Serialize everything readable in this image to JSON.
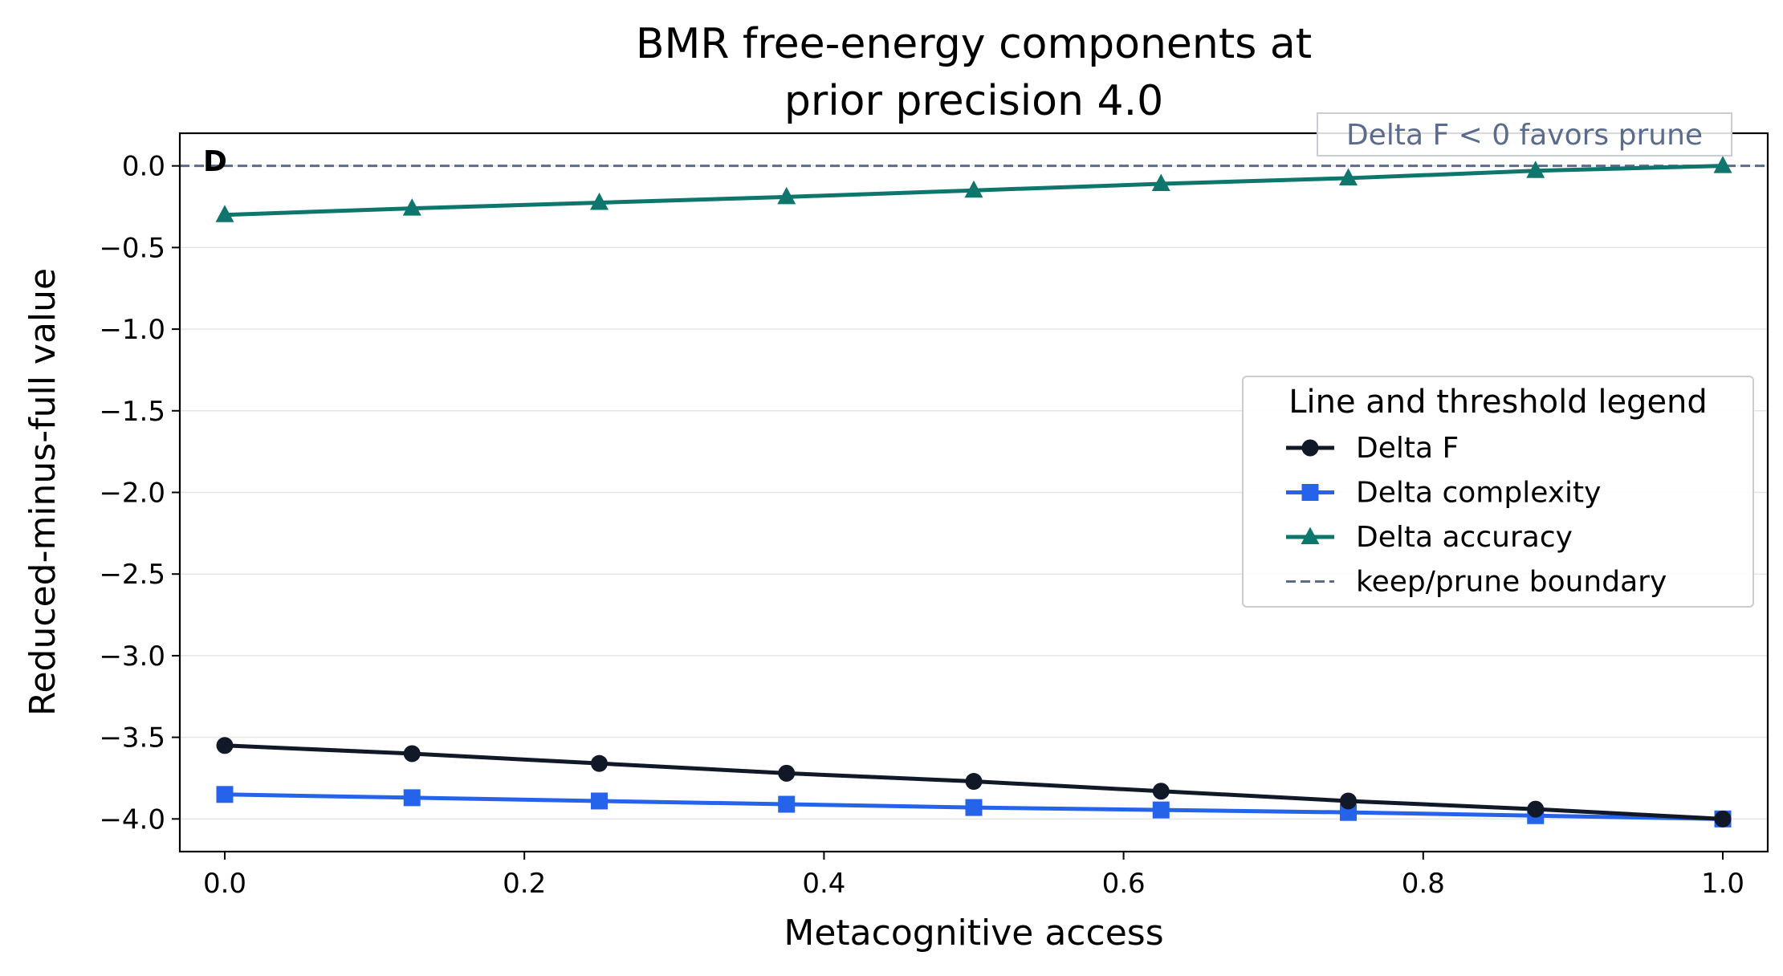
{
  "chart_data": {
    "type": "line",
    "title_lines": [
      "BMR free-energy components at",
      "prior precision 4.0"
    ],
    "xlabel": "Metacognitive access",
    "ylabel": "Reduced-minus-full value",
    "panel_label": "D",
    "xlim": [
      -0.03,
      1.03
    ],
    "ylim": [
      -4.2,
      0.2
    ],
    "x_ticks": [
      0.0,
      0.2,
      0.4,
      0.6,
      0.8,
      1.0
    ],
    "x_tick_labels": [
      "0.0",
      "0.2",
      "0.4",
      "0.6",
      "0.8",
      "1.0"
    ],
    "y_ticks": [
      0.0,
      -0.5,
      -1.0,
      -1.5,
      -2.0,
      -2.5,
      -3.0,
      -3.5,
      -4.0
    ],
    "y_tick_labels": [
      "0.0",
      "−0.5",
      "−1.0",
      "−1.5",
      "−2.0",
      "−2.5",
      "−3.0",
      "−3.5",
      "−4.0"
    ],
    "grid": "horizontal",
    "x": [
      0.0,
      0.125,
      0.25,
      0.375,
      0.5,
      0.625,
      0.75,
      0.875,
      1.0
    ],
    "series": [
      {
        "name": "Delta F",
        "color": "#111827",
        "marker": "circle",
        "values": [
          -3.55,
          -3.6,
          -3.66,
          -3.72,
          -3.77,
          -3.83,
          -3.89,
          -3.94,
          -4.0
        ]
      },
      {
        "name": "Delta complexity",
        "color": "#2563eb",
        "marker": "square",
        "values": [
          -3.85,
          -3.87,
          -3.89,
          -3.91,
          -3.93,
          -3.945,
          -3.96,
          -3.98,
          -4.0
        ]
      },
      {
        "name": "Delta accuracy",
        "color": "#0f766e",
        "marker": "triangle",
        "values": [
          -0.3,
          -0.26,
          -0.225,
          -0.19,
          -0.15,
          -0.11,
          -0.075,
          -0.03,
          0.0
        ]
      }
    ],
    "threshold": {
      "name": "keep/prune boundary",
      "y": 0.0,
      "color": "#5b6b8c",
      "style": "dashed"
    },
    "annotation": {
      "text": "Delta F < 0 favors prune",
      "color": "#5b6b8c"
    },
    "legend": {
      "title": "Line and threshold legend",
      "placement": "center-right"
    }
  }
}
